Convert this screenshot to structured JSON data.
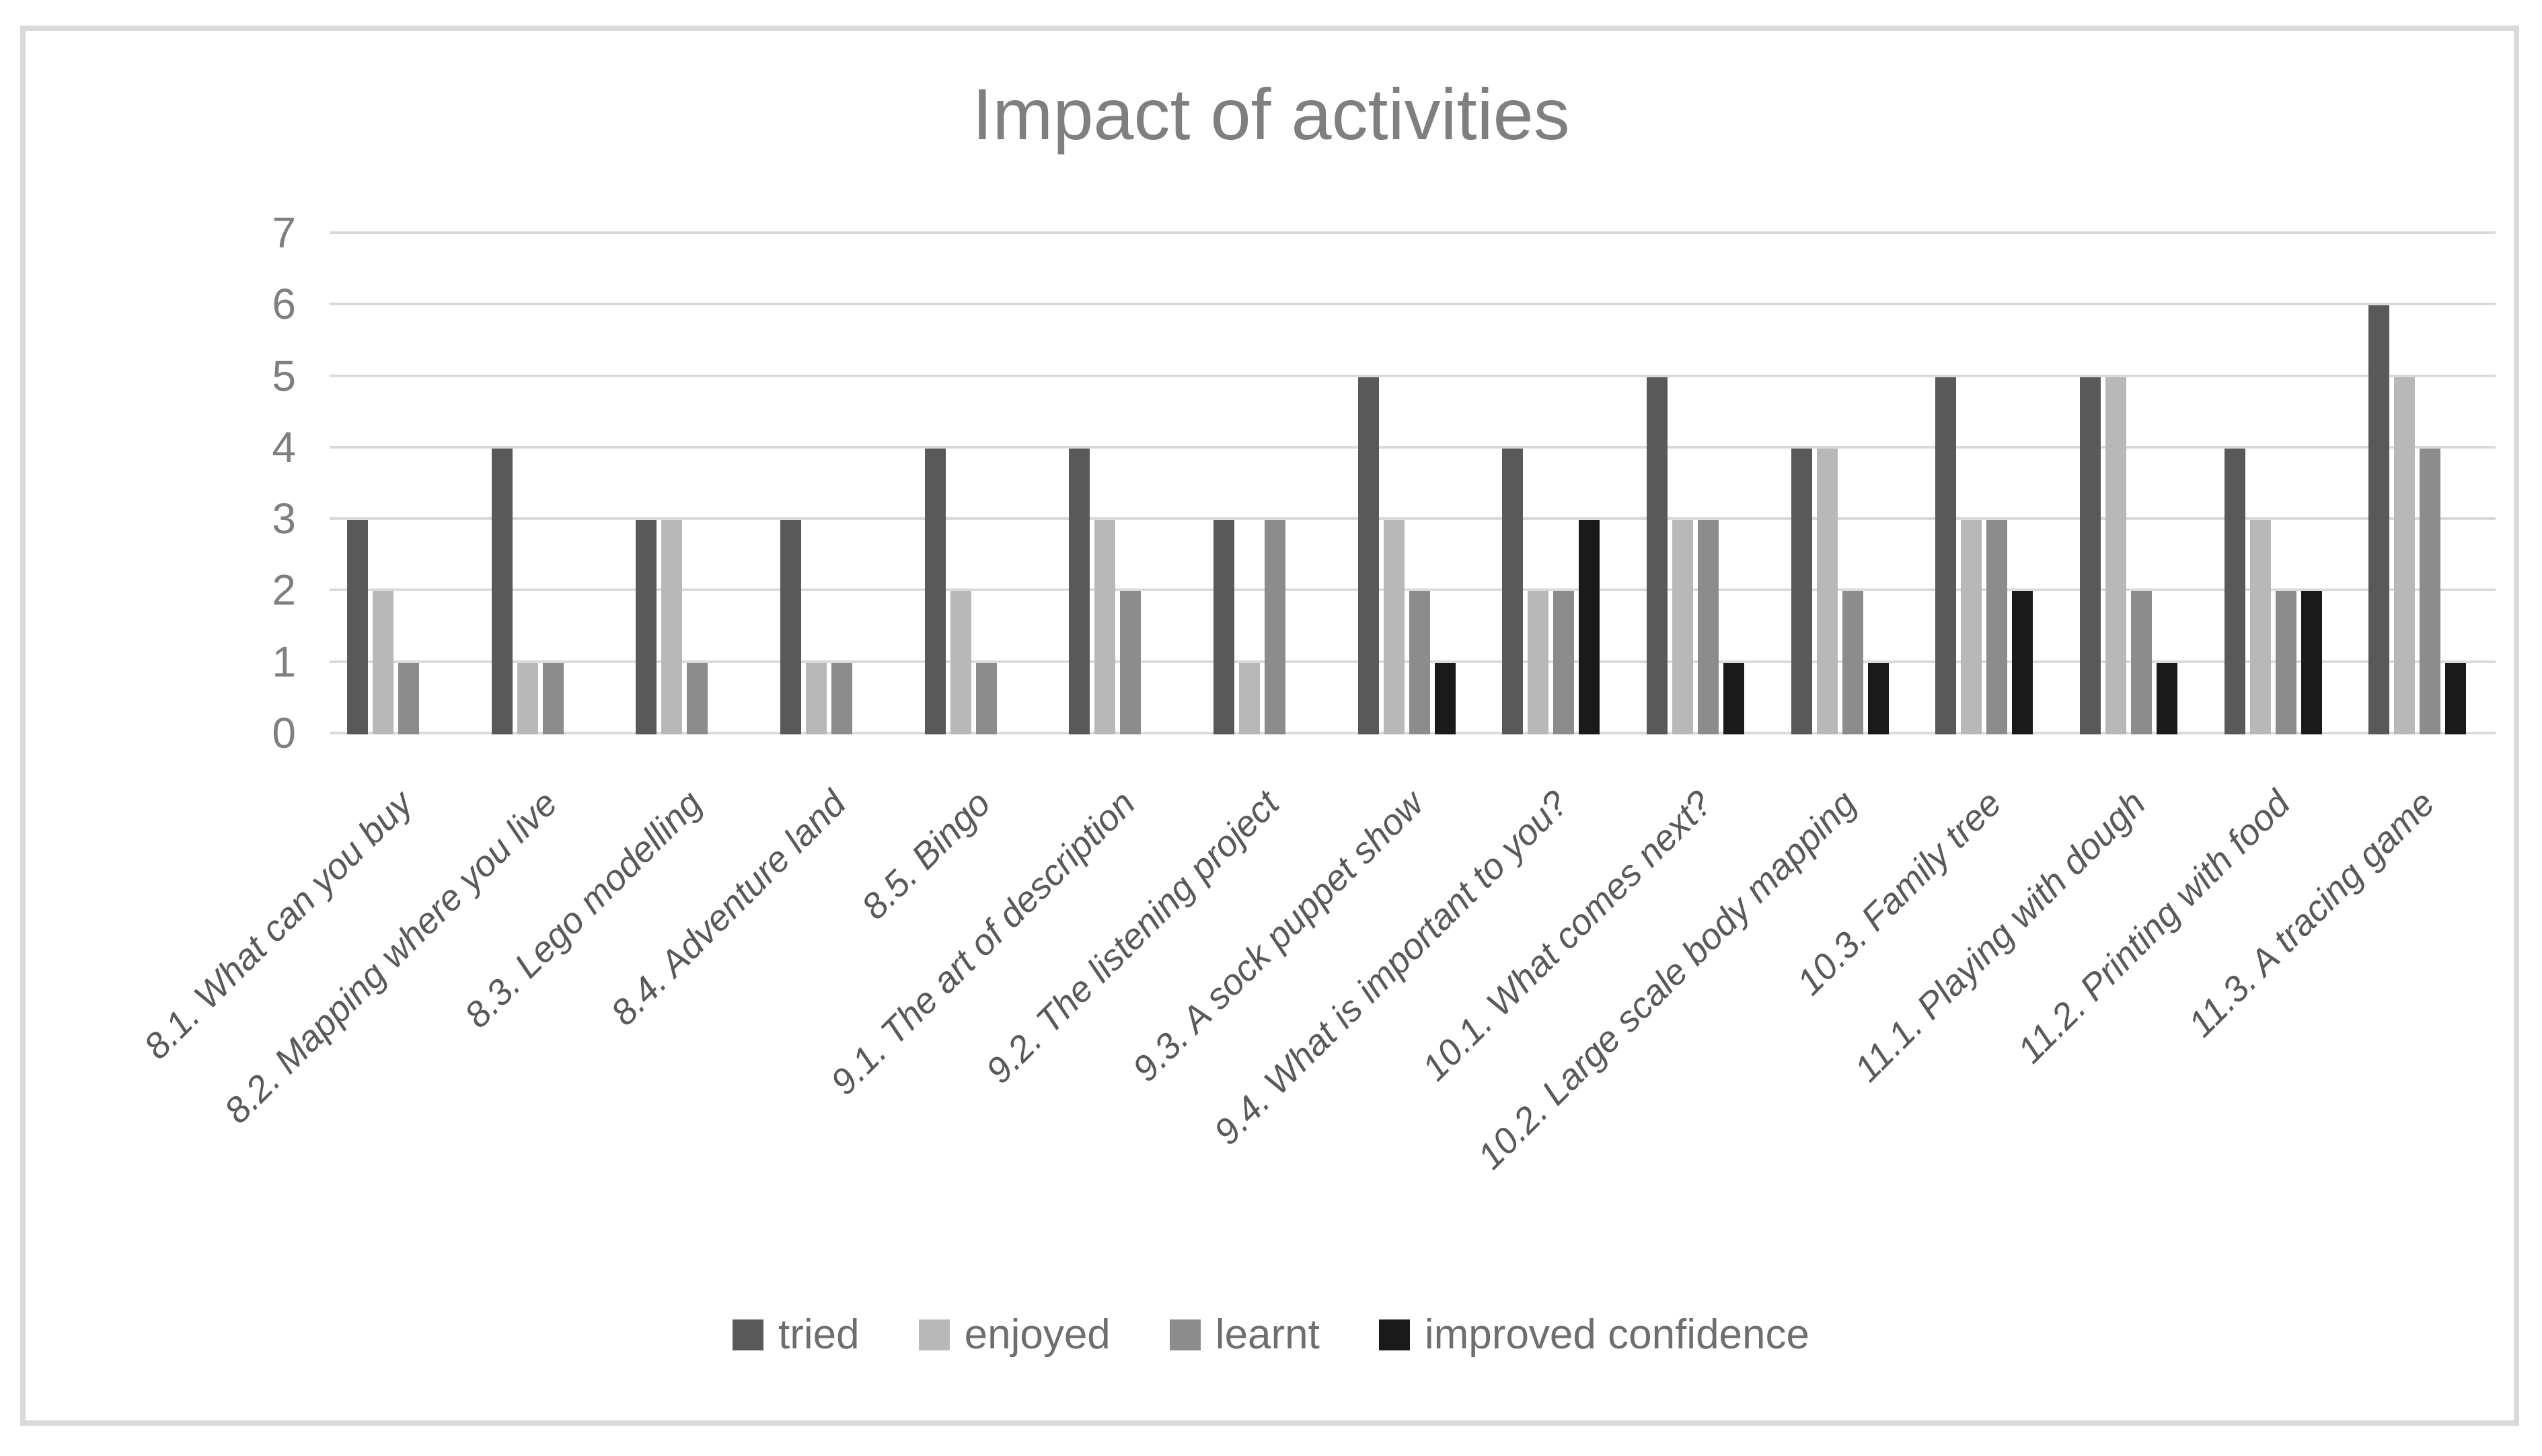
{
  "chart_data": {
    "type": "bar",
    "title": "Impact of activities",
    "categories": [
      "8.1. What can you buy",
      "8.2. Mapping where you live",
      "8.3. Lego modelling",
      "8.4. Adventure land",
      "8.5. Bingo",
      "9.1. The art of description",
      "9.2. The listening project",
      "9.3. A sock puppet show",
      "9.4. What is important to you?",
      "10.1. What comes next?",
      "10.2. Large scale body mapping",
      "10.3. Family tree",
      "11.1. Playing with dough",
      "11.2. Printing with food",
      "11.3. A tracing game"
    ],
    "series": [
      {
        "name": "tried",
        "color": "#595959",
        "values": [
          3,
          4,
          3,
          3,
          4,
          4,
          3,
          5,
          4,
          5,
          4,
          5,
          5,
          4,
          6
        ]
      },
      {
        "name": "enjoyed",
        "color": "#b8b8b8",
        "values": [
          2,
          1,
          3,
          1,
          2,
          3,
          1,
          3,
          2,
          3,
          4,
          3,
          5,
          3,
          5
        ]
      },
      {
        "name": "learnt",
        "color": "#8c8c8c",
        "values": [
          1,
          1,
          1,
          1,
          1,
          2,
          3,
          2,
          2,
          3,
          2,
          3,
          2,
          2,
          4
        ]
      },
      {
        "name": "improved confidence",
        "color": "#1a1a1a",
        "values": [
          0,
          0,
          0,
          0,
          0,
          0,
          0,
          1,
          3,
          1,
          1,
          2,
          1,
          2,
          1
        ]
      }
    ],
    "xlabel": "",
    "ylabel": "",
    "ylim": [
      0,
      7
    ],
    "yticks": [
      0,
      1,
      2,
      3,
      4,
      5,
      6,
      7
    ],
    "grid": true,
    "gridline_color": "#dadada",
    "frame_color": "#d9d9d9",
    "legend_position": "bottom"
  }
}
